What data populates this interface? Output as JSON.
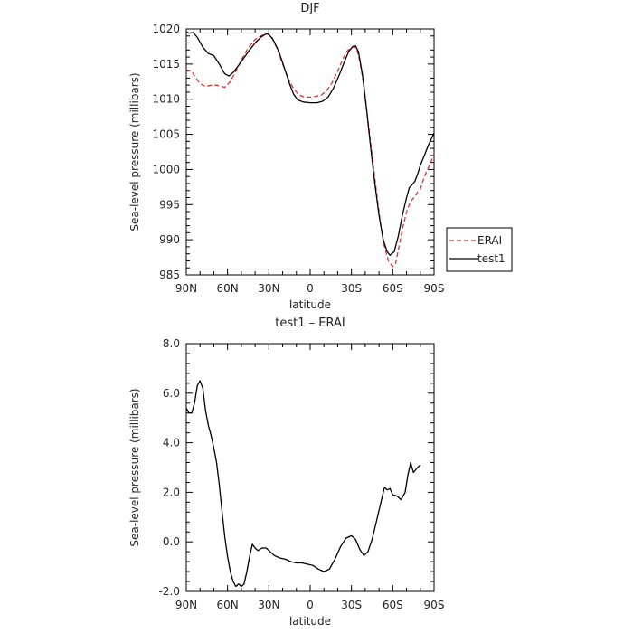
{
  "chart_data": [
    {
      "type": "line",
      "title": "DJF",
      "xlabel": "latitude",
      "ylabel": "Sea-level pressure (millibars)",
      "xlim": [
        90,
        -90
      ],
      "ylim": [
        985,
        1020
      ],
      "x_ticks": [
        {
          "value": 90,
          "label": "90N"
        },
        {
          "value": 60,
          "label": "60N"
        },
        {
          "value": 30,
          "label": "30N"
        },
        {
          "value": 0,
          "label": "0"
        },
        {
          "value": -30,
          "label": "30S"
        },
        {
          "value": -60,
          "label": "60S"
        },
        {
          "value": -90,
          "label": "90S"
        }
      ],
      "y_ticks": [
        {
          "value": 1020,
          "label": "1020"
        },
        {
          "value": 1015,
          "label": "1015"
        },
        {
          "value": 1010,
          "label": "1010"
        },
        {
          "value": 1005,
          "label": "1005"
        },
        {
          "value": 1000,
          "label": "1000"
        },
        {
          "value": 995,
          "label": "995"
        },
        {
          "value": 990,
          "label": "990"
        },
        {
          "value": 985,
          "label": "985"
        }
      ],
      "legend": "outside-right",
      "series": [
        {
          "name": "ERAI",
          "color": "#e03030",
          "dash": true,
          "points": [
            [
              90,
              1014.2
            ],
            [
              86,
              1014.0
            ],
            [
              84,
              1013.3
            ],
            [
              80,
              1012.2
            ],
            [
              76,
              1011.8
            ],
            [
              72,
              1012.0
            ],
            [
              68,
              1012.0
            ],
            [
              64,
              1011.8
            ],
            [
              62,
              1011.7
            ],
            [
              58,
              1012.5
            ],
            [
              54,
              1014.0
            ],
            [
              50,
              1015.6
            ],
            [
              45,
              1017.3
            ],
            [
              40,
              1018.5
            ],
            [
              35,
              1019.1
            ],
            [
              31,
              1019.3
            ],
            [
              28,
              1018.9
            ],
            [
              24,
              1017.2
            ],
            [
              20,
              1015.0
            ],
            [
              16,
              1013.0
            ],
            [
              12,
              1011.5
            ],
            [
              8,
              1010.6
            ],
            [
              4,
              1010.3
            ],
            [
              0,
              1010.3
            ],
            [
              -4,
              1010.4
            ],
            [
              -8,
              1010.6
            ],
            [
              -12,
              1011.2
            ],
            [
              -16,
              1012.4
            ],
            [
              -20,
              1014.0
            ],
            [
              -24,
              1015.8
            ],
            [
              -27,
              1016.9
            ],
            [
              -30,
              1017.4
            ],
            [
              -32,
              1017.5
            ],
            [
              -34,
              1017.0
            ],
            [
              -36,
              1015.5
            ],
            [
              -39,
              1012.0
            ],
            [
              -42,
              1007.0
            ],
            [
              -45,
              1002.0
            ],
            [
              -48,
              997.0
            ],
            [
              -51,
              992.5
            ],
            [
              -54,
              989.0
            ],
            [
              -57,
              986.9
            ],
            [
              -60,
              986.2
            ],
            [
              -62,
              986.6
            ],
            [
              -64,
              988.5
            ],
            [
              -67,
              991.5
            ],
            [
              -70,
              994.0
            ],
            [
              -73,
              995.5
            ],
            [
              -76,
              996.1
            ],
            [
              -78,
              996.8
            ],
            [
              -80,
              997.2
            ],
            [
              -83,
              999.0
            ],
            [
              -86,
              1000.3
            ],
            [
              -88,
              1001.2
            ],
            [
              -90,
              1002.3
            ]
          ]
        },
        {
          "name": "test1",
          "color": "#000000",
          "dash": false,
          "points": [
            [
              90,
              1019.6
            ],
            [
              88,
              1019.4
            ],
            [
              85,
              1019.5
            ],
            [
              82,
              1018.8
            ],
            [
              78,
              1017.4
            ],
            [
              74,
              1016.5
            ],
            [
              70,
              1016.2
            ],
            [
              66,
              1015.0
            ],
            [
              62,
              1013.6
            ],
            [
              59,
              1013.3
            ],
            [
              56,
              1013.8
            ],
            [
              52,
              1014.8
            ],
            [
              48,
              1015.9
            ],
            [
              44,
              1017.0
            ],
            [
              40,
              1018.0
            ],
            [
              36,
              1018.8
            ],
            [
              32,
              1019.3
            ],
            [
              30,
              1019.2
            ],
            [
              27,
              1018.5
            ],
            [
              23,
              1016.9
            ],
            [
              19,
              1014.6
            ],
            [
              15,
              1012.2
            ],
            [
              12,
              1010.7
            ],
            [
              9,
              1009.9
            ],
            [
              5,
              1009.6
            ],
            [
              0,
              1009.5
            ],
            [
              -5,
              1009.5
            ],
            [
              -9,
              1009.7
            ],
            [
              -13,
              1010.3
            ],
            [
              -17,
              1011.6
            ],
            [
              -21,
              1013.4
            ],
            [
              -25,
              1015.4
            ],
            [
              -28,
              1016.8
            ],
            [
              -31,
              1017.5
            ],
            [
              -33,
              1017.6
            ],
            [
              -35,
              1016.8
            ],
            [
              -38,
              1013.5
            ],
            [
              -41,
              1008.5
            ],
            [
              -44,
              1003.0
            ],
            [
              -47,
              998.0
            ],
            [
              -50,
              993.5
            ],
            [
              -53,
              990.0
            ],
            [
              -56,
              988.3
            ],
            [
              -58,
              987.8
            ],
            [
              -61,
              988.3
            ],
            [
              -64,
              990.5
            ],
            [
              -67,
              993.5
            ],
            [
              -70,
              996.0
            ],
            [
              -72,
              997.4
            ],
            [
              -74,
              997.8
            ],
            [
              -76,
              998.3
            ],
            [
              -78,
              999.3
            ],
            [
              -80,
              1000.6
            ],
            [
              -83,
              1002.0
            ],
            [
              -86,
              1003.5
            ],
            [
              -90,
              1005.2
            ]
          ]
        }
      ]
    },
    {
      "type": "line",
      "title": "test1 – ERAI",
      "xlabel": "latitude",
      "ylabel": "Sea-level pressure (millibars)",
      "xlim": [
        90,
        -90
      ],
      "ylim": [
        -2.0,
        8.0
      ],
      "x_ticks": [
        {
          "value": 90,
          "label": "90N"
        },
        {
          "value": 60,
          "label": "60N"
        },
        {
          "value": 30,
          "label": "30N"
        },
        {
          "value": 0,
          "label": "0"
        },
        {
          "value": -30,
          "label": "30S"
        },
        {
          "value": -60,
          "label": "60S"
        },
        {
          "value": -90,
          "label": "90S"
        }
      ],
      "y_ticks": [
        {
          "value": 8.0,
          "label": "8.0"
        },
        {
          "value": 6.0,
          "label": "6.0"
        },
        {
          "value": 4.0,
          "label": "4.0"
        },
        {
          "value": 2.0,
          "label": "2.0"
        },
        {
          "value": 0.0,
          "label": "0.0"
        },
        {
          "value": -2.0,
          "label": "-2.0"
        }
      ],
      "series": [
        {
          "color": "#000000",
          "dash": false,
          "points": [
            [
              90,
              5.4
            ],
            [
              88,
              5.2
            ],
            [
              86,
              5.2
            ],
            [
              84,
              5.6
            ],
            [
              82,
              6.3
            ],
            [
              80,
              6.5
            ],
            [
              78,
              6.2
            ],
            [
              76,
              5.3
            ],
            [
              74,
              4.7
            ],
            [
              72,
              4.3
            ],
            [
              70,
              3.8
            ],
            [
              68,
              3.2
            ],
            [
              66,
              2.3
            ],
            [
              64,
              1.2
            ],
            [
              62,
              0.2
            ],
            [
              60,
              -0.6
            ],
            [
              58,
              -1.2
            ],
            [
              56,
              -1.6
            ],
            [
              54,
              -1.8
            ],
            [
              52,
              -1.7
            ],
            [
              50,
              -1.8
            ],
            [
              48,
              -1.7
            ],
            [
              46,
              -1.2
            ],
            [
              44,
              -0.6
            ],
            [
              42,
              -0.1
            ],
            [
              40,
              -0.25
            ],
            [
              38,
              -0.35
            ],
            [
              35,
              -0.25
            ],
            [
              32,
              -0.25
            ],
            [
              29,
              -0.4
            ],
            [
              26,
              -0.55
            ],
            [
              22,
              -0.65
            ],
            [
              18,
              -0.7
            ],
            [
              14,
              -0.8
            ],
            [
              10,
              -0.85
            ],
            [
              6,
              -0.85
            ],
            [
              2,
              -0.9
            ],
            [
              -2,
              -0.95
            ],
            [
              -6,
              -1.1
            ],
            [
              -10,
              -1.2
            ],
            [
              -14,
              -1.1
            ],
            [
              -18,
              -0.7
            ],
            [
              -22,
              -0.2
            ],
            [
              -26,
              0.15
            ],
            [
              -30,
              0.25
            ],
            [
              -33,
              0.1
            ],
            [
              -36,
              -0.3
            ],
            [
              -39,
              -0.55
            ],
            [
              -42,
              -0.4
            ],
            [
              -45,
              0.1
            ],
            [
              -48,
              0.8
            ],
            [
              -51,
              1.5
            ],
            [
              -54,
              2.2
            ],
            [
              -56,
              2.1
            ],
            [
              -58,
              2.15
            ],
            [
              -60,
              1.9
            ],
            [
              -63,
              1.85
            ],
            [
              -66,
              1.7
            ],
            [
              -69,
              2.0
            ],
            [
              -71,
              2.7
            ],
            [
              -73,
              3.2
            ],
            [
              -75,
              2.8
            ],
            [
              -78,
              3.0
            ],
            [
              -80,
              3.1
            ]
          ]
        }
      ]
    }
  ]
}
